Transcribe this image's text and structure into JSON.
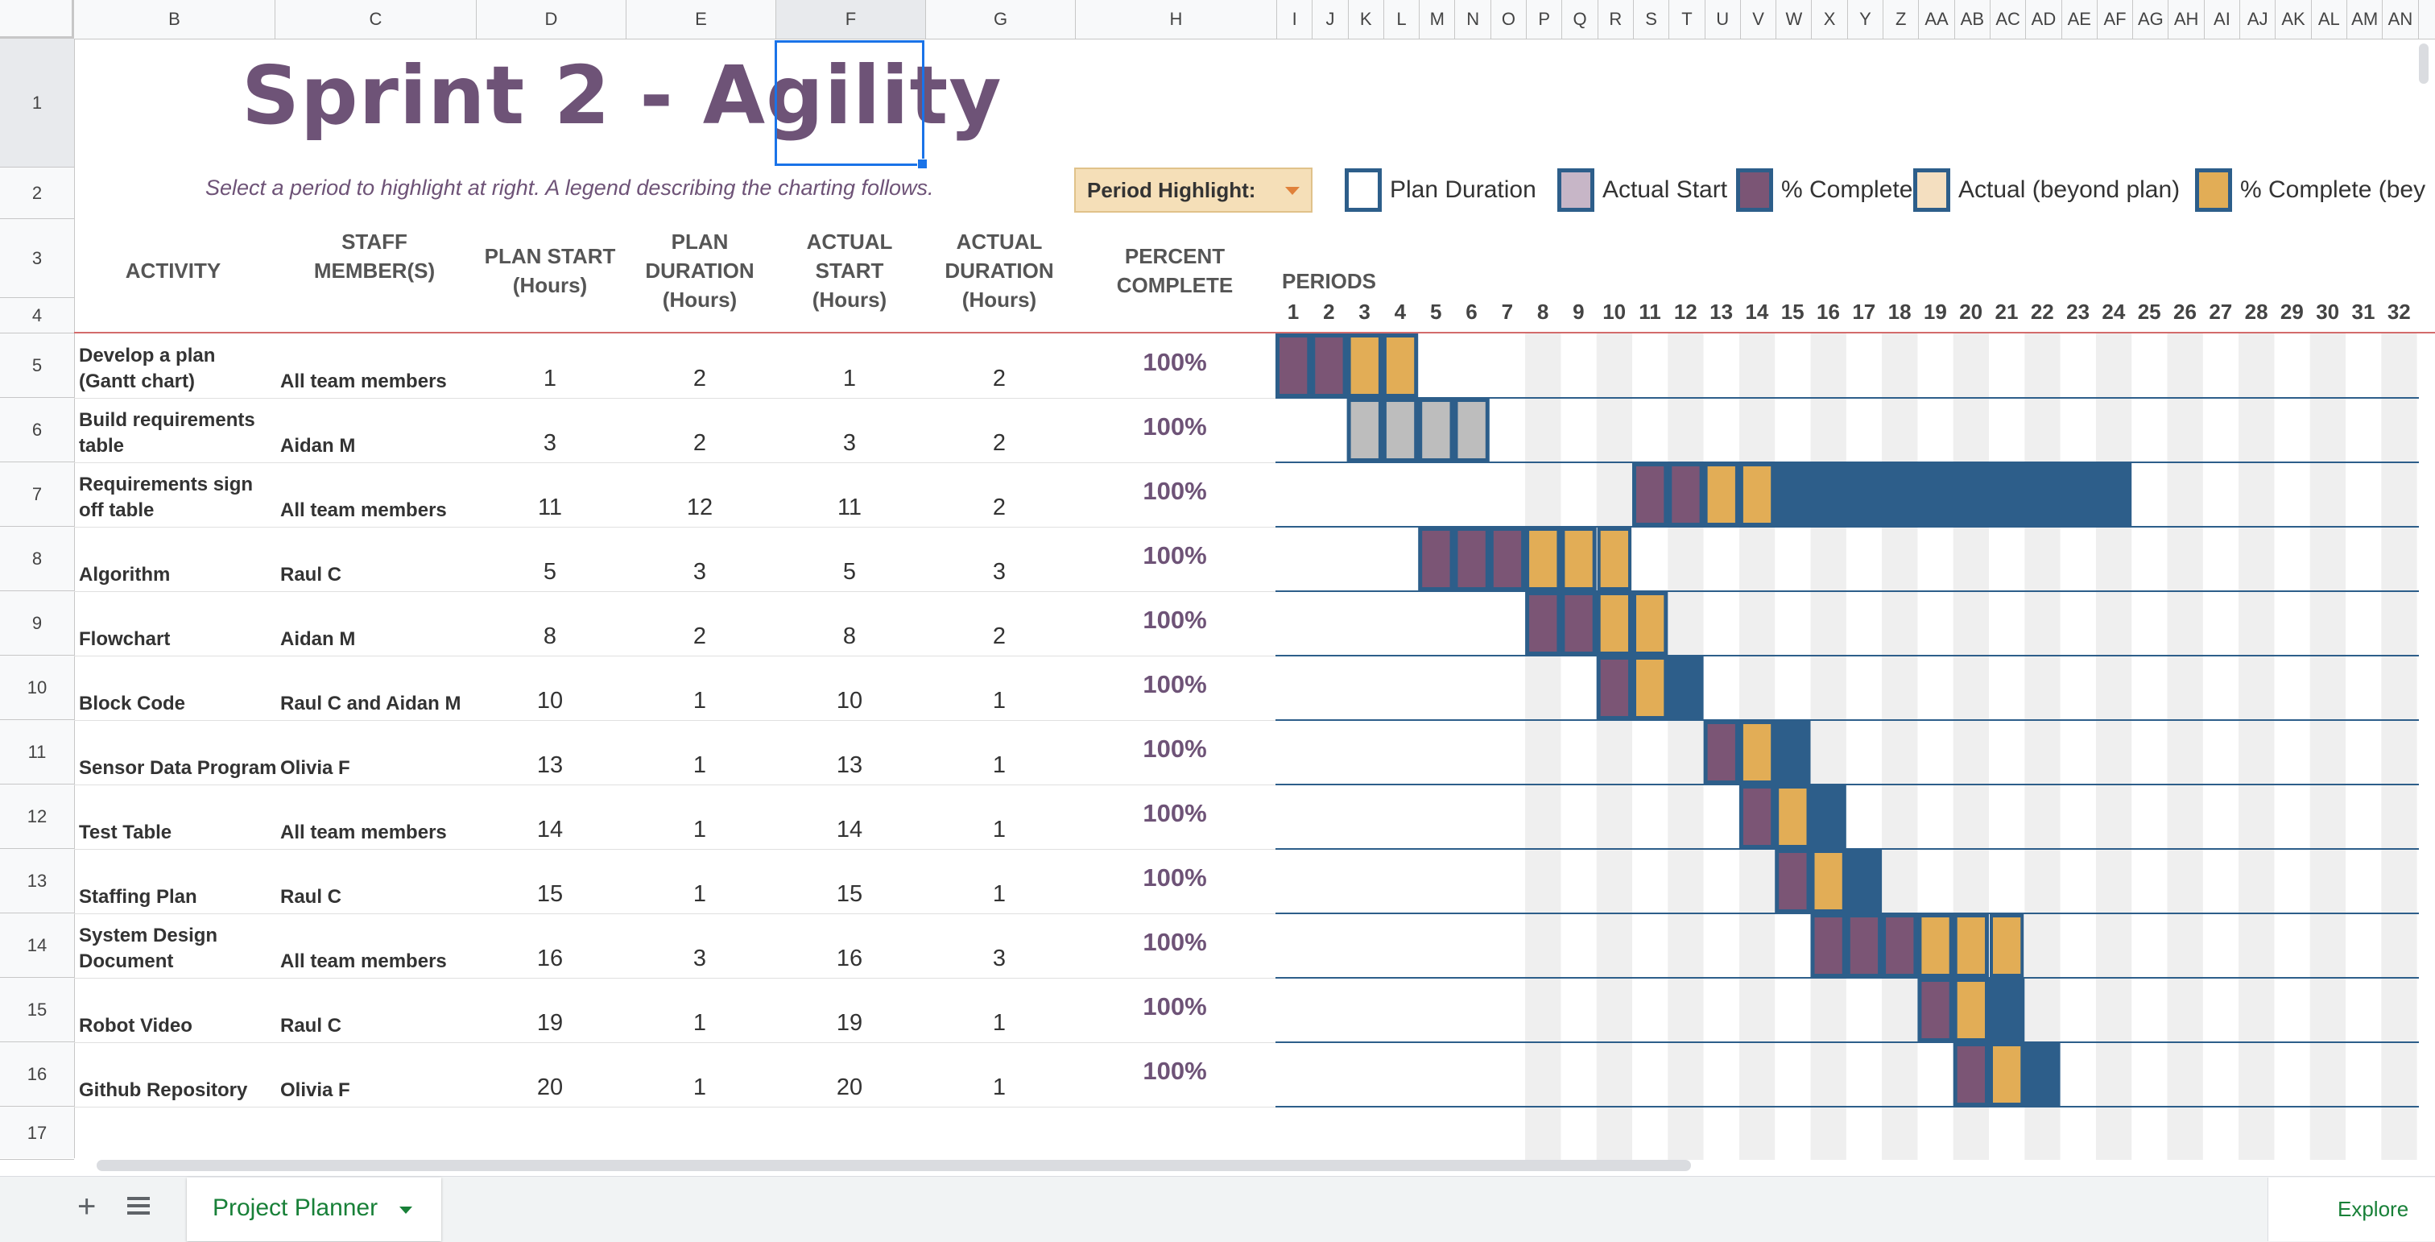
{
  "columns": [
    "B",
    "C",
    "D",
    "E",
    "F",
    "G",
    "H",
    "I",
    "J",
    "K",
    "L",
    "M",
    "N",
    "O",
    "P",
    "Q",
    "R",
    "S",
    "T",
    "U",
    "V",
    "W",
    "X",
    "Y",
    "Z",
    "AA",
    "AB",
    "AC",
    "AD",
    "AE",
    "AF",
    "AG",
    "AH",
    "AI",
    "AJ",
    "AK",
    "AL",
    "AM",
    "AN"
  ],
  "rows": [
    "1",
    "2",
    "3",
    "4",
    "5",
    "6",
    "7",
    "8",
    "9",
    "10",
    "11",
    "12",
    "13",
    "14",
    "15",
    "16",
    "17"
  ],
  "title": "Sprint 2 - Agility",
  "subtitle": "Select a period to highlight at right.  A legend describing the charting follows.",
  "period_highlight": "Period Highlight:",
  "legend": [
    "Plan Duration",
    "Actual Start",
    "% Complete",
    "Actual (beyond plan)",
    "% Complete (bey"
  ],
  "headers": {
    "activity": "ACTIVITY",
    "staff_1": "STAFF",
    "staff_2": "MEMBER(S)",
    "plan_start_1": "PLAN START",
    "plan_start_2": "(Hours)",
    "plan_dur_1": "PLAN",
    "plan_dur_2": "DURATION",
    "plan_dur_3": "(Hours)",
    "act_start_1": "ACTUAL",
    "act_start_2": "START",
    "act_start_3": "(Hours)",
    "act_dur_1": "ACTUAL",
    "act_dur_2": "DURATION",
    "act_dur_3": "(Hours)",
    "pct_1": "PERCENT",
    "pct_2": "COMPLETE",
    "periods": "PERIODS"
  },
  "period_numbers": [
    "1",
    "2",
    "3",
    "4",
    "5",
    "6",
    "7",
    "8",
    "9",
    "10",
    "11",
    "12",
    "13",
    "14",
    "15",
    "16",
    "17",
    "18",
    "19",
    "20",
    "21",
    "22",
    "23",
    "24",
    "25",
    "26",
    "27",
    "28",
    "29",
    "30",
    "31",
    "32"
  ],
  "tasks": [
    {
      "activity_1": "Develop a plan",
      "activity_2": "(Gantt chart)",
      "staff": "All team members",
      "plan_start": "1",
      "plan_duration": "2",
      "actual_start": "1",
      "actual_duration": "2",
      "percent": "100%"
    },
    {
      "activity_1": "Build requirements",
      "activity_2": "table",
      "staff": "Aidan M",
      "plan_start": "3",
      "plan_duration": "2",
      "actual_start": "3",
      "actual_duration": "2",
      "percent": "100%"
    },
    {
      "activity_1": "Requirements sign",
      "activity_2": "off table",
      "staff": "All team members",
      "plan_start": "11",
      "plan_duration": "12",
      "actual_start": "11",
      "actual_duration": "2",
      "percent": "100%"
    },
    {
      "activity_1": "",
      "activity_2": "Algorithm",
      "staff": "Raul C",
      "plan_start": "5",
      "plan_duration": "3",
      "actual_start": "5",
      "actual_duration": "3",
      "percent": "100%"
    },
    {
      "activity_1": "",
      "activity_2": "Flowchart",
      "staff": "Aidan M",
      "plan_start": "8",
      "plan_duration": "2",
      "actual_start": "8",
      "actual_duration": "2",
      "percent": "100%"
    },
    {
      "activity_1": "",
      "activity_2": "Block Code",
      "staff": "Raul C and Aidan M",
      "plan_start": "10",
      "plan_duration": "1",
      "actual_start": "10",
      "actual_duration": "1",
      "percent": "100%"
    },
    {
      "activity_1": "",
      "activity_2": "Sensor Data Program",
      "staff": "Olivia F",
      "plan_start": "13",
      "plan_duration": "1",
      "actual_start": "13",
      "actual_duration": "1",
      "percent": "100%"
    },
    {
      "activity_1": "",
      "activity_2": "Test Table",
      "staff": "All team members",
      "plan_start": "14",
      "plan_duration": "1",
      "actual_start": "14",
      "actual_duration": "1",
      "percent": "100%"
    },
    {
      "activity_1": "",
      "activity_2": "Staffing Plan",
      "staff": "Raul C",
      "plan_start": "15",
      "plan_duration": "1",
      "actual_start": "15",
      "actual_duration": "1",
      "percent": "100%"
    },
    {
      "activity_1": "System Design",
      "activity_2": "Document",
      "staff": "All team members",
      "plan_start": "16",
      "plan_duration": "3",
      "actual_start": "16",
      "actual_duration": "3",
      "percent": "100%"
    },
    {
      "activity_1": "",
      "activity_2": "Robot Video",
      "staff": "Raul C",
      "plan_start": "19",
      "plan_duration": "1",
      "actual_start": "19",
      "actual_duration": "1",
      "percent": "100%"
    },
    {
      "activity_1": "",
      "activity_2": "Github Repository",
      "staff": "Olivia F",
      "plan_start": "20",
      "plan_duration": "1",
      "actual_start": "20",
      "actual_duration": "1",
      "percent": "100%"
    }
  ],
  "sheet_tab": "Project Planner",
  "explore": "Explore",
  "colors": {
    "purple": "#7b5575",
    "gold": "#e2ad56",
    "blue": "#2d5e8a",
    "gray": "#bdbdbd",
    "stripe": "#efefef",
    "title": "#6e5377"
  }
}
